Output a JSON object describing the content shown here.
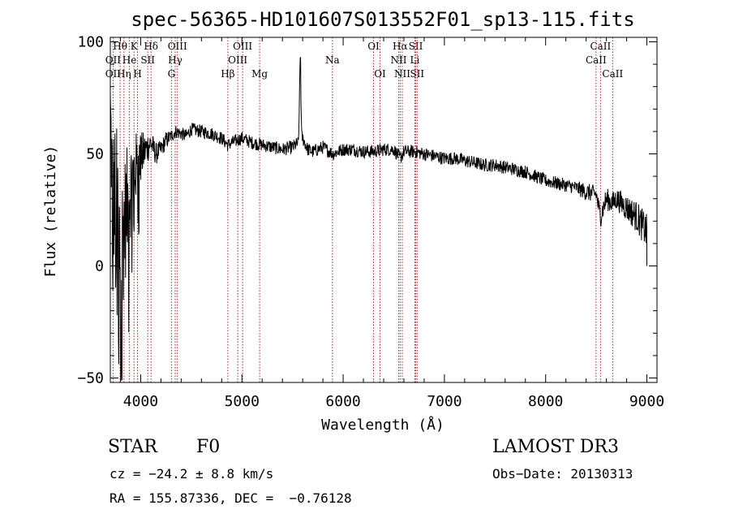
{
  "chart_data": {
    "type": "line",
    "title": "spec-56365-HD101607S013552F01_sp13-115.fits",
    "xlabel": "Wavelength (Å)",
    "ylabel": "Flux (relative)",
    "xlim": [
      3700,
      9100
    ],
    "ylim": [
      -52,
      102
    ],
    "xticks": [
      4000,
      5000,
      6000,
      7000,
      8000,
      9000
    ],
    "xtick_labels": [
      "4000",
      "5000",
      "6000",
      "7000",
      "8000",
      "9000"
    ],
    "yticks": [
      -50,
      0,
      50,
      100
    ],
    "ytick_labels": [
      "−50",
      "0",
      "50",
      "100"
    ],
    "grid": false,
    "line_color": "#000000",
    "marker_color": "#b22222",
    "spectrum_envelope": {
      "x": [
        3700,
        3720,
        3760,
        3800,
        3840,
        3880,
        3920,
        3960,
        4000,
        4050,
        4100,
        4150,
        4200,
        4250,
        4300,
        4350,
        4400,
        4450,
        4500,
        4600,
        4700,
        4800,
        4860,
        4900,
        5000,
        5100,
        5200,
        5300,
        5400,
        5500,
        5560,
        5575,
        5590,
        5650,
        5700,
        5800,
        5900,
        6000,
        6100,
        6200,
        6300,
        6400,
        6500,
        6563,
        6600,
        6700,
        6800,
        6900,
        7000,
        7100,
        7200,
        7300,
        7400,
        7500,
        7600,
        7700,
        7800,
        7900,
        8000,
        8100,
        8200,
        8300,
        8400,
        8500,
        8540,
        8600,
        8660,
        8700,
        8800,
        8900,
        9000
      ],
      "y": [
        70,
        35,
        25,
        5,
        20,
        30,
        40,
        45,
        48,
        52,
        55,
        50,
        52,
        56,
        58,
        60,
        59,
        58,
        61,
        60,
        59,
        57,
        54,
        55,
        57,
        55,
        54,
        53,
        52,
        53,
        55,
        93,
        58,
        52,
        51,
        53,
        50,
        52,
        52,
        51,
        51,
        52,
        52,
        48,
        51,
        51,
        50,
        49,
        48,
        48,
        47,
        46,
        45,
        45,
        44,
        43,
        42,
        40,
        38,
        37,
        36,
        35,
        33,
        32,
        22,
        30,
        28,
        30,
        26,
        22,
        15
      ],
      "noise": [
        20,
        30,
        40,
        40,
        30,
        25,
        20,
        15,
        12,
        8,
        6,
        5,
        4,
        4,
        3,
        3,
        3,
        3,
        3,
        3,
        3,
        3,
        3,
        3,
        3,
        3,
        3,
        3,
        3,
        3,
        3,
        0,
        3,
        3,
        3,
        3,
        3,
        3,
        3,
        3,
        3,
        3,
        3,
        3,
        3,
        3,
        3,
        3,
        3,
        3,
        3,
        3,
        3,
        3,
        3,
        3,
        3,
        3,
        3,
        3,
        3,
        3,
        4,
        4,
        5,
        5,
        5,
        5,
        6,
        7,
        8
      ]
    },
    "line_markers": [
      {
        "label": "OII",
        "x": 3727,
        "row": 2
      },
      {
        "label": "OII",
        "x": 3727,
        "row": 3
      },
      {
        "label": "Hθ",
        "x": 3797,
        "row": 1
      },
      {
        "label": "Hη",
        "x": 3835,
        "row": 3
      },
      {
        "label": "He",
        "x": 3889,
        "row": 2
      },
      {
        "label": "K",
        "x": 3934,
        "row": 1
      },
      {
        "label": "SII",
        "x": 4070,
        "row": 2
      },
      {
        "label": "H",
        "x": 3969,
        "row": 3
      },
      {
        "label": "Hδ",
        "x": 4102,
        "row": 1
      },
      {
        "label": "OIII",
        "x": 4363,
        "row": 1
      },
      {
        "label": "Hγ",
        "x": 4341,
        "row": 2
      },
      {
        "label": "G",
        "x": 4304,
        "row": 3
      },
      {
        "label": "Hβ",
        "x": 4861,
        "row": 3
      },
      {
        "label": "OIII",
        "x": 5007,
        "row": 1
      },
      {
        "label": "OIII",
        "x": 4959,
        "row": 2
      },
      {
        "label": "Mg",
        "x": 5175,
        "row": 3
      },
      {
        "label": "Na",
        "x": 5894,
        "row": 2
      },
      {
        "label": "OI",
        "x": 6300,
        "row": 1
      },
      {
        "label": "OI",
        "x": 6364,
        "row": 3
      },
      {
        "label": "Hα",
        "x": 6563,
        "row": 1
      },
      {
        "label": "NII",
        "x": 6548,
        "row": 2
      },
      {
        "label": "NII",
        "x": 6584,
        "row": 3
      },
      {
        "label": "SII",
        "x": 6717,
        "row": 1
      },
      {
        "label": "Li",
        "x": 6708,
        "row": 2
      },
      {
        "label": "SII",
        "x": 6731,
        "row": 3
      },
      {
        "label": "CaII",
        "x": 8542,
        "row": 1
      },
      {
        "label": "CaII",
        "x": 8498,
        "row": 2
      },
      {
        "label": "CaII",
        "x": 8662,
        "row": 3
      }
    ]
  },
  "info": {
    "class": "STAR",
    "subclass": "F0",
    "survey": "LAMOST DR3",
    "cz": "cz = −24.2 ± 8.8 km/s",
    "obs_date": "Obs−Date: 20130313",
    "radec": "RA = 155.87336, DEC =  −0.76128"
  }
}
